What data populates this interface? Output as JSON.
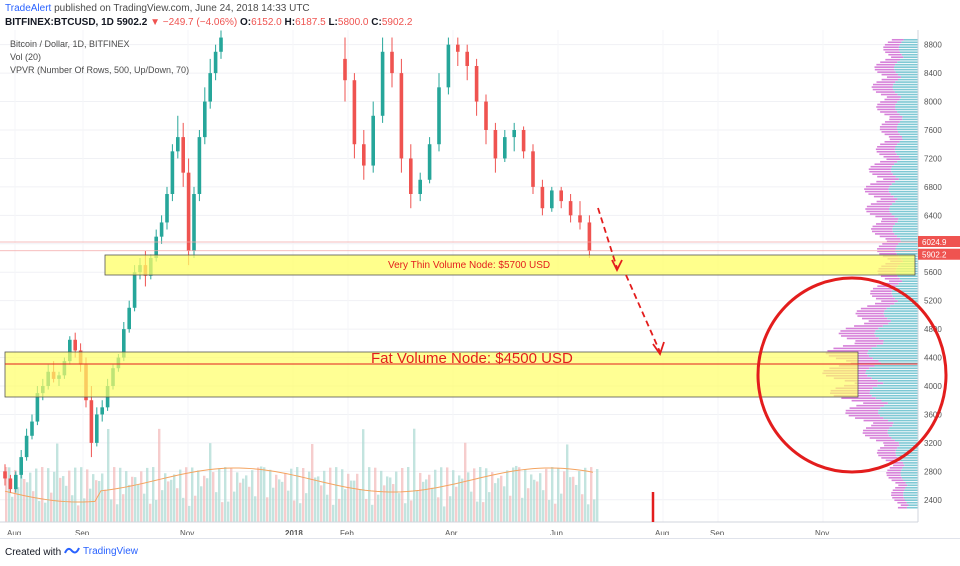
{
  "header": {
    "author": "TradeAlert",
    "published_text": "published on TradingView.com, June 24, 2018 14:33 UTC",
    "symbol": "BITFINEX:BTCUSD, 1D",
    "last": "5902.2",
    "change": "−249.7 (−4.06%)",
    "o_label": "O:",
    "o_value": "6152.0",
    "h_label": "H:",
    "h_value": "6187.5",
    "l_label": "L:",
    "l_value": "5800.0",
    "c_label": "C:",
    "c_value": "5902.2"
  },
  "legend": {
    "line1": "Bitcoin / Dollar, 1D, BITFINEX",
    "line2": "Vol (20)",
    "line3": "VPVR (Number Of Rows, 500, Up/Down, 70)"
  },
  "footer": {
    "created_with": "Created with",
    "brand": "TradingView"
  },
  "chart_data": {
    "type": "candlestick",
    "title": "Bitcoin / Dollar, 1D, BITFINEX",
    "xlabel": "",
    "ylabel": "",
    "ylim": [
      2200,
      8900
    ],
    "y_ticks": [
      8800,
      8400,
      8000,
      7600,
      7200,
      6800,
      6400,
      6000,
      5600,
      5200,
      4800,
      4400,
      4000,
      3600,
      3200,
      2800,
      2400
    ],
    "x_ticks": [
      "Aug",
      "Sep",
      "Nov",
      "2018",
      "Feb",
      "Apr",
      "Jun",
      "Aug",
      "Sep",
      "Nov"
    ],
    "price_labels": {
      "level_1": "6024.9",
      "level_2": "5902.2"
    },
    "colors": {
      "up": "#26a69a",
      "down": "#ef5350",
      "vpvr_up": "#7ec8d4",
      "vpvr_down": "#d680d9",
      "zone": "#ffff66",
      "circle": "#e31d1d"
    },
    "annotations": [
      {
        "text": "Very Thin Volume Node: $5700 USD",
        "price": 5700
      },
      {
        "text": "Fat Volume Node: $4500 USD",
        "price": 4500
      }
    ],
    "series": [
      {
        "values": [
          [
            2800,
            2900,
            2600,
            2700
          ],
          [
            2700,
            2750,
            2500,
            2550
          ],
          [
            2550,
            2800,
            2500,
            2750
          ],
          [
            2750,
            3100,
            2700,
            3000
          ],
          [
            3000,
            3400,
            2950,
            3300
          ],
          [
            3300,
            3600,
            3250,
            3500
          ],
          [
            3500,
            4000,
            3450,
            3900
          ],
          [
            3900,
            4100,
            3800,
            4000
          ],
          [
            4000,
            4300,
            3950,
            4200
          ],
          [
            4200,
            4350,
            4050,
            4100
          ],
          [
            4100,
            4200,
            4000,
            4150
          ],
          [
            4150,
            4400,
            4100,
            4350
          ],
          [
            4350,
            4700,
            4300,
            4650
          ],
          [
            4650,
            4750,
            4400,
            4500
          ],
          [
            4500,
            4600,
            4200,
            4300
          ],
          [
            4300,
            4400,
            3700,
            3800
          ],
          [
            3800,
            4000,
            3000,
            3200
          ],
          [
            3200,
            3700,
            3150,
            3600
          ],
          [
            3600,
            3800,
            3500,
            3700
          ],
          [
            3700,
            4100,
            3650,
            4000
          ],
          [
            4000,
            4300,
            3950,
            4250
          ],
          [
            4250,
            4450,
            4200,
            4400
          ],
          [
            4400,
            4900,
            4350,
            4800
          ],
          [
            4800,
            5200,
            4750,
            5100
          ],
          [
            5100,
            5700,
            5050,
            5600
          ],
          [
            5600,
            5800,
            5500,
            5700
          ],
          [
            5700,
            5900,
            5400,
            5550
          ],
          [
            5550,
            5850,
            5500,
            5800
          ],
          [
            5800,
            6200,
            5750,
            6100
          ],
          [
            6100,
            6400,
            6000,
            6300
          ],
          [
            6300,
            6800,
            6200,
            6700
          ],
          [
            6700,
            7400,
            6600,
            7300
          ],
          [
            7300,
            7800,
            7200,
            7500
          ],
          [
            7500,
            7700,
            6800,
            7000
          ],
          [
            7000,
            7200,
            5700,
            5900
          ],
          [
            5900,
            6800,
            5800,
            6700
          ],
          [
            6700,
            7600,
            6600,
            7500
          ],
          [
            7500,
            8200,
            7400,
            8000
          ],
          [
            8000,
            8600,
            7900,
            8400
          ],
          [
            8400,
            8800,
            8300,
            8700
          ],
          [
            8700,
            9000,
            8600,
            8900
          ]
        ]
      },
      {
        "values": [
          [
            8600,
            8900,
            8000,
            8300
          ],
          [
            8300,
            8400,
            7200,
            7400
          ],
          [
            7400,
            7600,
            6900,
            7100
          ],
          [
            7100,
            8000,
            7000,
            7800
          ],
          [
            7800,
            8900,
            7700,
            8700
          ],
          [
            8700,
            8900,
            8200,
            8400
          ],
          [
            8400,
            8600,
            7000,
            7200
          ],
          [
            7200,
            7400,
            6500,
            6700
          ],
          [
            6700,
            7000,
            6600,
            6900
          ],
          [
            6900,
            7500,
            6850,
            7400
          ],
          [
            7400,
            8400,
            7300,
            8200
          ],
          [
            8200,
            8900,
            8100,
            8800
          ],
          [
            8800,
            8900,
            8500,
            8700
          ],
          [
            8700,
            8800,
            8300,
            8500
          ],
          [
            8500,
            8600,
            7800,
            8000
          ],
          [
            8000,
            8100,
            7400,
            7600
          ],
          [
            7600,
            7700,
            7000,
            7200
          ],
          [
            7200,
            7600,
            7150,
            7500
          ],
          [
            7500,
            7700,
            7300,
            7600
          ],
          [
            7600,
            7650,
            7200,
            7300
          ],
          [
            7300,
            7400,
            6700,
            6800
          ],
          [
            6800,
            6900,
            6400,
            6500
          ],
          [
            6500,
            6800,
            6450,
            6750
          ],
          [
            6750,
            6800,
            6500,
            6600
          ],
          [
            6600,
            6700,
            6300,
            6400
          ],
          [
            6400,
            6600,
            6200,
            6300
          ],
          [
            6300,
            6400,
            5800,
            5902
          ]
        ]
      }
    ],
    "volume_label": "Vol (20)",
    "vpvr_label": "VPVR (Number Of Rows, 500, Up/Down, 70)"
  }
}
